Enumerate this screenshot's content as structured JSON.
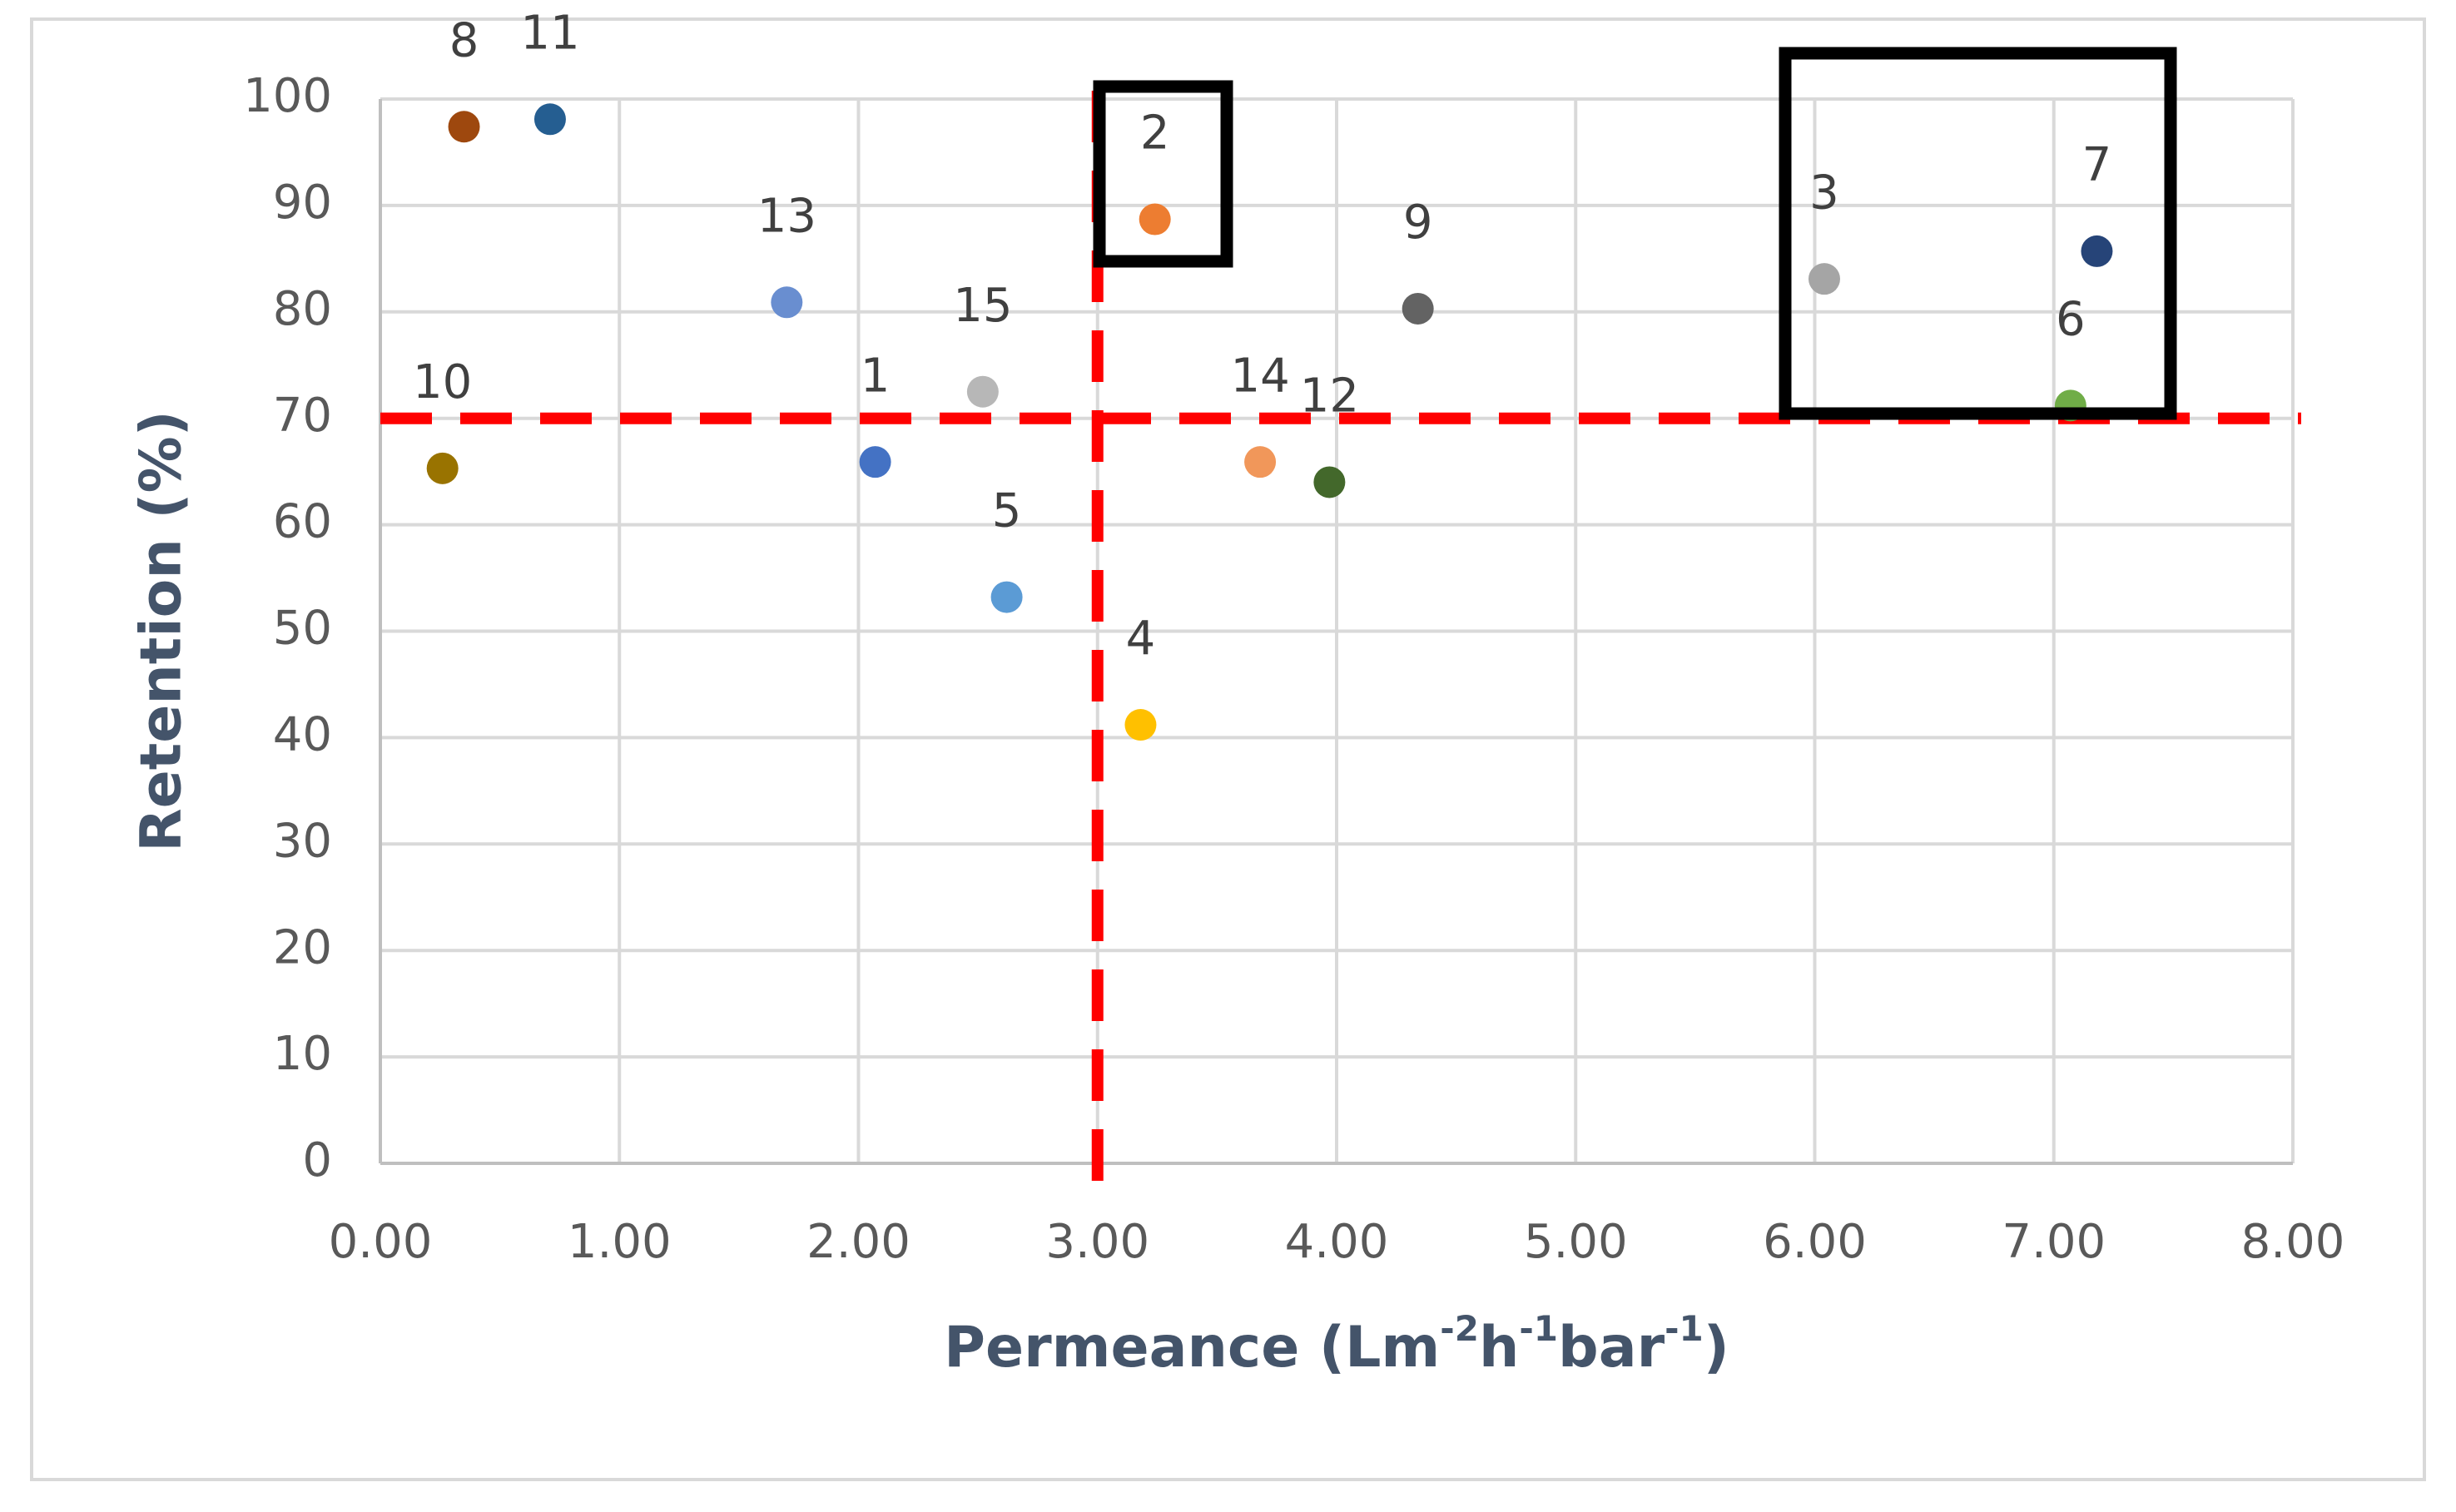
{
  "chart_data": {
    "type": "scatter",
    "x_label": [
      "Permeance (Lm",
      "-2",
      "h",
      "-1",
      "bar",
      "-1",
      ")"
    ],
    "y_label": "Retention (%)",
    "labels": [
      "1",
      "2",
      "3",
      "4",
      "5",
      "6",
      "7",
      "8",
      "9",
      "10",
      "11",
      "12",
      "13",
      "14",
      "15"
    ],
    "x": [
      2.07,
      3.24,
      6.04,
      3.18,
      2.62,
      7.07,
      7.18,
      0.35,
      4.34,
      0.26,
      0.71,
      3.97,
      1.7,
      3.68,
      2.52
    ],
    "y": [
      65.9,
      88.7,
      83.1,
      41.2,
      53.2,
      71.2,
      85.7,
      97.4,
      80.3,
      65.3,
      98.1,
      64.0,
      80.9,
      65.9,
      72.5
    ],
    "colors": [
      "#4472c4",
      "#ed7d31",
      "#a5a5a5",
      "#ffc000",
      "#5b9bd5",
      "#70ad47",
      "#264478",
      "#9e480e",
      "#636363",
      "#997300",
      "#255e91",
      "#43682b",
      "#698ed0",
      "#f1975a",
      "#b7b7b7"
    ],
    "xlim": [
      0,
      8
    ],
    "xticks": [
      {
        "value": 0,
        "label": "0.00"
      },
      {
        "value": 1,
        "label": "1.00"
      },
      {
        "value": 2,
        "label": "2.00"
      },
      {
        "value": 3,
        "label": "3.00"
      },
      {
        "value": 4,
        "label": "4.00"
      },
      {
        "value": 5,
        "label": "5.00"
      },
      {
        "value": 6,
        "label": "6.00"
      },
      {
        "value": 7,
        "label": "7.00"
      },
      {
        "value": 8,
        "label": "8.00"
      }
    ],
    "ylim": [
      0,
      100
    ],
    "yticks": [
      0,
      10,
      20,
      30,
      40,
      50,
      60,
      70,
      80,
      90,
      100
    ],
    "grid": true,
    "reference_lines": {
      "x": 3,
      "y": 70,
      "color": "#ff0000"
    }
  }
}
